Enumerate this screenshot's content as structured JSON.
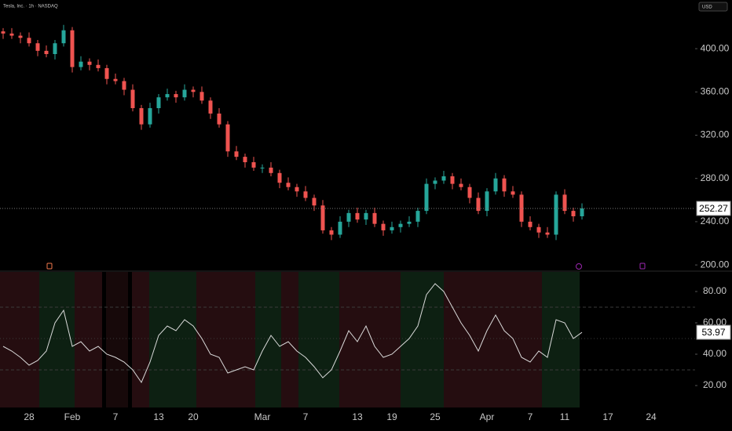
{
  "header": {
    "title": "Tesla, Inc. · 1h · NASDAQ",
    "currency": "USD"
  },
  "chart_data": [
    {
      "type": "candlestick",
      "up_color": "#26a69a",
      "down_color": "#ef5350",
      "open": [
        416,
        414,
        412,
        410,
        405,
        398,
        395,
        405,
        417,
        383,
        388,
        385,
        382,
        372,
        370,
        362,
        345,
        330,
        345,
        355,
        358,
        355,
        362,
        360,
        352,
        340,
        330,
        305,
        300,
        295,
        290,
        290,
        285,
        276,
        272,
        268,
        262,
        255,
        232,
        228,
        240,
        248,
        242,
        248,
        238,
        232,
        235,
        238,
        240,
        250,
        275,
        278,
        282,
        275,
        272,
        262,
        250,
        268,
        280,
        268,
        265,
        240,
        235,
        230,
        228,
        265,
        250,
        245,
        null,
        null,
        null,
        null,
        null,
        null,
        null,
        null
      ],
      "high": [
        419,
        419,
        415,
        415,
        408,
        403,
        408,
        422,
        420,
        393,
        391,
        390,
        385,
        377,
        373,
        367,
        348,
        350,
        358,
        363,
        361,
        367,
        365,
        365,
        355,
        345,
        333,
        310,
        303,
        300,
        293,
        295,
        288,
        281,
        275,
        273,
        265,
        260,
        235,
        245,
        251,
        253,
        251,
        253,
        241,
        240,
        241,
        245,
        253,
        280,
        281,
        287,
        285,
        280,
        275,
        267,
        271,
        285,
        283,
        273,
        268,
        245,
        238,
        235,
        268,
        270,
        253,
        257,
        null,
        null,
        null,
        null,
        null,
        null,
        null,
        null
      ],
      "low": [
        409,
        409,
        405,
        402,
        393,
        392,
        390,
        402,
        378,
        380,
        380,
        379,
        367,
        367,
        357,
        342,
        325,
        327,
        340,
        352,
        350,
        352,
        355,
        349,
        335,
        327,
        300,
        297,
        290,
        287,
        285,
        282,
        271,
        269,
        263,
        259,
        250,
        229,
        223,
        225,
        235,
        239,
        237,
        235,
        227,
        229,
        230,
        235,
        235,
        247,
        270,
        275,
        270,
        269,
        257,
        247,
        245,
        265,
        263,
        262,
        235,
        232,
        225,
        225,
        223,
        247,
        240,
        242,
        null,
        null,
        null,
        null,
        null,
        null,
        null,
        null
      ],
      "close": [
        414,
        412,
        410,
        405,
        398,
        395,
        405,
        417,
        383,
        388,
        385,
        382,
        372,
        370,
        362,
        345,
        330,
        345,
        355,
        358,
        355,
        362,
        360,
        352,
        340,
        330,
        305,
        300,
        295,
        290,
        290,
        285,
        276,
        272,
        268,
        262,
        255,
        232,
        228,
        240,
        248,
        242,
        248,
        238,
        232,
        235,
        238,
        240,
        250,
        275,
        278,
        282,
        275,
        272,
        262,
        250,
        268,
        280,
        268,
        265,
        240,
        235,
        230,
        228,
        265,
        250,
        245,
        252.27,
        null,
        null,
        null,
        null,
        null,
        null,
        null,
        null
      ],
      "ylim": [
        195,
        445
      ],
      "yticks": [
        {
          "value": 200,
          "label": "200.00"
        },
        {
          "value": 240,
          "label": "240.00"
        },
        {
          "value": 280,
          "label": "280.00"
        },
        {
          "value": 320,
          "label": "320.00"
        },
        {
          "value": 360,
          "label": "360.00"
        },
        {
          "value": 400,
          "label": "400.00"
        }
      ]
    },
    {
      "type": "line",
      "color": "#d9d9d9",
      "categories": [
        null,
        null,
        null,
        "28",
        null,
        null,
        null,
        null,
        "Feb",
        null,
        null,
        null,
        null,
        "7",
        null,
        null,
        null,
        null,
        "13",
        null,
        null,
        null,
        "20",
        null,
        null,
        null,
        null,
        null,
        null,
        null,
        "Mar",
        null,
        null,
        null,
        null,
        "7",
        null,
        null,
        null,
        null,
        null,
        "13",
        null,
        null,
        null,
        "19",
        null,
        null,
        null,
        null,
        "25",
        null,
        null,
        null,
        null,
        null,
        "Apr",
        null,
        null,
        null,
        null,
        "7",
        null,
        null,
        null,
        "11",
        null,
        null,
        null,
        null,
        "17",
        null,
        null,
        null,
        null,
        "24"
      ],
      "values": [
        45,
        42,
        38,
        33,
        36,
        42,
        60,
        68,
        45,
        48,
        42,
        45,
        40,
        38,
        35,
        30,
        22,
        35,
        52,
        58,
        55,
        62,
        58,
        50,
        40,
        38,
        28,
        30,
        32,
        30,
        42,
        52,
        45,
        48,
        42,
        38,
        32,
        25,
        30,
        42,
        55,
        48,
        58,
        45,
        38,
        40,
        45,
        50,
        58,
        78,
        85,
        80,
        70,
        60,
        52,
        42,
        55,
        65,
        55,
        50,
        38,
        35,
        42,
        38,
        62,
        60,
        50,
        53.97,
        null,
        null,
        null,
        null,
        null,
        null,
        null,
        null
      ],
      "levels": [
        30,
        50,
        70
      ],
      "ylim": [
        6,
        92.5
      ],
      "yticks": [
        {
          "value": 20,
          "label": "20.00"
        },
        {
          "value": 40,
          "label": "40.00"
        },
        {
          "value": 60,
          "label": "60.00"
        },
        {
          "value": 80,
          "label": "80.00"
        }
      ]
    }
  ]
}
